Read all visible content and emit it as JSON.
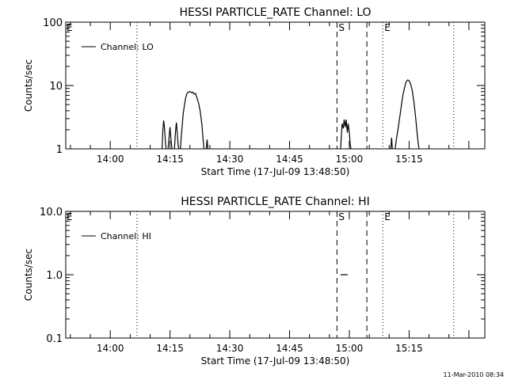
{
  "footer": {
    "timestamp": "11-Mar-2010 08:34"
  },
  "chart_data": [
    {
      "type": "line",
      "title": "HESSI PARTICLE_RATE Channel: LO",
      "xlabel": "Start Time (17-Jul-09 13:48:50)",
      "ylabel": "Counts/sec",
      "y_scale": "log",
      "xlim_min": [
        -11.17,
        94.0
      ],
      "ylim": [
        1,
        100
      ],
      "x_ticks": [
        {
          "min": 0,
          "label": "14:00"
        },
        {
          "min": 15,
          "label": "14:15"
        },
        {
          "min": 30,
          "label": "14:30"
        },
        {
          "min": 45,
          "label": "14:45"
        },
        {
          "min": 60,
          "label": "15:00"
        },
        {
          "min": 75,
          "label": "15:15"
        }
      ],
      "y_ticks": [
        {
          "value": 1,
          "label": "1"
        },
        {
          "value": 10,
          "label": "10"
        },
        {
          "value": 100,
          "label": "100"
        }
      ],
      "grid": false,
      "legend": {
        "position": "top-left",
        "entries": [
          "Channel: LO"
        ]
      },
      "markers": [
        {
          "min": 6.7,
          "style": "dotted",
          "label": ""
        },
        {
          "min": 56.9,
          "style": "dashed",
          "label": "S"
        },
        {
          "min": 64.4,
          "style": "dashed",
          "label": ""
        },
        {
          "min": 68.4,
          "style": "dotted",
          "label": "E"
        },
        {
          "min": 86.2,
          "style": "dotted",
          "label": ""
        }
      ],
      "edge_labels": [
        {
          "text": "E",
          "min": -11.0
        }
      ],
      "series": [
        {
          "name": "Channel: LO",
          "segments": [
            [
              [
                13.0,
                1.0
              ],
              [
                13.2,
                2.0
              ],
              [
                13.4,
                2.8
              ],
              [
                13.6,
                2.2
              ],
              [
                13.8,
                1.4
              ],
              [
                14.0,
                1.0
              ]
            ],
            [
              [
                14.5,
                1.0
              ],
              [
                14.8,
                1.6
              ],
              [
                15.0,
                2.2
              ],
              [
                15.2,
                1.5
              ],
              [
                15.5,
                1.0
              ]
            ],
            [
              [
                16.1,
                1.0
              ],
              [
                16.4,
                2.0
              ],
              [
                16.6,
                2.6
              ],
              [
                16.8,
                1.8
              ],
              [
                17.0,
                1.2
              ],
              [
                17.2,
                1.0
              ]
            ],
            [
              [
                17.6,
                1.0
              ],
              [
                17.8,
                1.5
              ],
              [
                18.1,
                2.5
              ],
              [
                18.3,
                3.5
              ],
              [
                18.6,
                4.8
              ],
              [
                18.9,
                6.3
              ],
              [
                19.2,
                7.4
              ],
              [
                19.6,
                7.9
              ],
              [
                20.0,
                8.0
              ],
              [
                20.4,
                7.7
              ],
              [
                20.7,
                7.9
              ],
              [
                21.0,
                7.3
              ],
              [
                21.4,
                7.5
              ],
              [
                21.8,
                6.3
              ],
              [
                22.2,
                5.2
              ],
              [
                22.6,
                3.8
              ],
              [
                23.0,
                2.4
              ],
              [
                23.3,
                1.4
              ],
              [
                23.5,
                1.0
              ]
            ],
            [
              [
                24.1,
                1.0
              ],
              [
                24.3,
                1.4
              ],
              [
                24.5,
                1.0
              ]
            ],
            [
              [
                57.8,
                1.0
              ],
              [
                58.0,
                1.6
              ],
              [
                58.2,
                2.5
              ],
              [
                58.5,
                2.1
              ],
              [
                58.7,
                2.9
              ],
              [
                59.0,
                2.2
              ],
              [
                59.2,
                2.9
              ],
              [
                59.5,
                1.8
              ],
              [
                59.7,
                2.5
              ],
              [
                60.0,
                1.8
              ],
              [
                60.2,
                1.2
              ],
              [
                60.4,
                1.0
              ]
            ],
            [
              [
                70.4,
                1.0
              ],
              [
                70.6,
                1.5
              ],
              [
                70.8,
                1.0
              ]
            ],
            [
              [
                71.5,
                1.0
              ],
              [
                71.8,
                1.4
              ],
              [
                72.2,
                2.0
              ],
              [
                72.6,
                3.0
              ],
              [
                73.0,
                4.6
              ],
              [
                73.4,
                6.8
              ],
              [
                73.8,
                9.0
              ],
              [
                74.2,
                11.2
              ],
              [
                74.6,
                12.2
              ],
              [
                75.0,
                12.0
              ],
              [
                75.4,
                10.5
              ],
              [
                75.8,
                8.2
              ],
              [
                76.2,
                5.5
              ],
              [
                76.6,
                3.3
              ],
              [
                77.0,
                1.8
              ],
              [
                77.3,
                1.2
              ],
              [
                77.5,
                1.0
              ]
            ]
          ]
        }
      ]
    },
    {
      "type": "line",
      "title": "HESSI PARTICLE_RATE Channel: HI",
      "xlabel": "Start Time (17-Jul-09 13:48:50)",
      "ylabel": "Counts/sec",
      "y_scale": "log",
      "xlim_min": [
        -11.17,
        94.0
      ],
      "ylim": [
        0.1,
        10
      ],
      "x_ticks": [
        {
          "min": 0,
          "label": "14:00"
        },
        {
          "min": 15,
          "label": "14:15"
        },
        {
          "min": 30,
          "label": "14:30"
        },
        {
          "min": 45,
          "label": "14:45"
        },
        {
          "min": 60,
          "label": "15:00"
        },
        {
          "min": 75,
          "label": "15:15"
        }
      ],
      "y_ticks": [
        {
          "value": 0.1,
          "label": "0.1"
        },
        {
          "value": 1,
          "label": "1.0"
        },
        {
          "value": 10,
          "label": "10.0"
        }
      ],
      "grid": false,
      "legend": {
        "position": "top-left",
        "entries": [
          "Channel: HI"
        ]
      },
      "markers": [
        {
          "min": 6.7,
          "style": "dotted",
          "label": ""
        },
        {
          "min": 56.9,
          "style": "dashed",
          "label": "S"
        },
        {
          "min": 64.4,
          "style": "dashed",
          "label": ""
        },
        {
          "min": 68.4,
          "style": "dotted",
          "label": "E"
        },
        {
          "min": 86.2,
          "style": "dotted",
          "label": ""
        }
      ],
      "edge_labels": [
        {
          "text": "E",
          "min": -11.0
        }
      ],
      "series": [
        {
          "name": "Channel: HI",
          "segments": [
            [
              [
                57.8,
                1.0
              ],
              [
                59.6,
                1.0
              ]
            ]
          ]
        }
      ]
    }
  ]
}
